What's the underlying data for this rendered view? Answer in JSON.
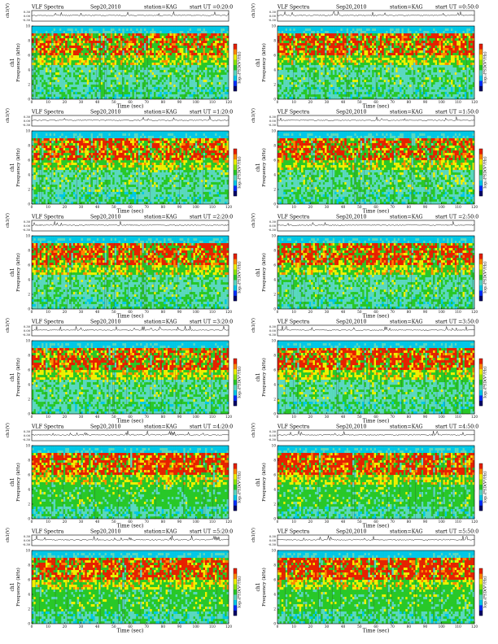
{
  "header": {
    "title": "VLF Spectra",
    "date": "Sep20,2010",
    "station": "station=KAG",
    "start_prefix": "start UT ="
  },
  "labels": {
    "ch1_axis": "ch1(V)",
    "ch1_ylabel": "ch1",
    "freq_ylabel": "Frequency (kHz)",
    "time_xlabel": "Time (sec)",
    "colorbar_label": "log₁₀PSD(V²/Hz)"
  },
  "colors": {
    "spectrogram": [
      "#00006a",
      "#0030ff",
      "#00c8e8",
      "#5ad8c0",
      "#28c828",
      "#8ce600",
      "#f0f000",
      "#ff8800",
      "#e82000"
    ]
  },
  "chart_data": [
    {
      "type": "heatmap",
      "start_ut": "0:20:0",
      "xlim": [
        0,
        120
      ],
      "ylim": [
        0,
        10
      ],
      "xticks": [
        0,
        10,
        20,
        30,
        40,
        50,
        60,
        70,
        80,
        90,
        100,
        110,
        120
      ],
      "yticks": [
        0,
        2,
        4,
        6,
        8,
        10
      ],
      "ch1_ylim": [
        -0.3,
        0.3
      ],
      "ch1_ticks": [
        "0.30",
        "0.00",
        "-0.30"
      ]
    },
    {
      "type": "heatmap",
      "start_ut": "0:50:0",
      "xlim": [
        0,
        120
      ],
      "ylim": [
        0,
        10
      ],
      "xticks": [
        0,
        10,
        20,
        30,
        40,
        50,
        60,
        70,
        80,
        90,
        100,
        110,
        120
      ],
      "yticks": [
        0,
        2,
        4,
        6,
        8,
        10
      ],
      "ch1_ylim": [
        -0.3,
        0.3
      ],
      "ch1_ticks": [
        "0.30",
        "0.00",
        "-0.30"
      ]
    },
    {
      "type": "heatmap",
      "start_ut": "1:20:0",
      "xlim": [
        0,
        120
      ],
      "ylim": [
        0,
        10
      ],
      "xticks": [
        0,
        10,
        20,
        30,
        40,
        50,
        60,
        70,
        80,
        90,
        100,
        110,
        120
      ],
      "yticks": [
        0,
        2,
        4,
        6,
        8,
        10
      ],
      "ch1_ylim": [
        -0.3,
        0.3
      ],
      "ch1_ticks": [
        "0.30",
        "0.00",
        "-0.30"
      ]
    },
    {
      "type": "heatmap",
      "start_ut": "1:50:0",
      "xlim": [
        0,
        120
      ],
      "ylim": [
        0,
        10
      ],
      "xticks": [
        0,
        10,
        20,
        30,
        40,
        50,
        60,
        70,
        80,
        90,
        100,
        110,
        120
      ],
      "yticks": [
        0,
        2,
        4,
        6,
        8,
        10
      ],
      "ch1_ylim": [
        -0.3,
        0.3
      ],
      "ch1_ticks": [
        "0.30",
        "0.00",
        "-0.30"
      ]
    },
    {
      "type": "heatmap",
      "start_ut": "2:20:0",
      "xlim": [
        0,
        120
      ],
      "ylim": [
        0,
        10
      ],
      "xticks": [
        0,
        10,
        20,
        30,
        40,
        50,
        60,
        70,
        80,
        90,
        100,
        110,
        120
      ],
      "yticks": [
        0,
        2,
        4,
        6,
        8,
        10
      ],
      "ch1_ylim": [
        -0.3,
        0.3
      ],
      "ch1_ticks": [
        "0.30",
        "0.00",
        "-0.30"
      ]
    },
    {
      "type": "heatmap",
      "start_ut": "2:50:0",
      "xlim": [
        0,
        120
      ],
      "ylim": [
        0,
        10
      ],
      "xticks": [
        0,
        10,
        20,
        30,
        40,
        50,
        60,
        70,
        80,
        90,
        100,
        110,
        120
      ],
      "yticks": [
        0,
        2,
        4,
        6,
        8,
        10
      ],
      "ch1_ylim": [
        -0.3,
        0.3
      ],
      "ch1_ticks": [
        "0.30",
        "0.00",
        "-0.30"
      ]
    },
    {
      "type": "heatmap",
      "start_ut": "3:20:0",
      "xlim": [
        0,
        120
      ],
      "ylim": [
        0,
        10
      ],
      "xticks": [
        0,
        10,
        20,
        30,
        40,
        50,
        60,
        70,
        80,
        90,
        100,
        110,
        120
      ],
      "yticks": [
        0,
        2,
        4,
        6,
        8,
        10
      ],
      "ch1_ylim": [
        -0.3,
        0.3
      ],
      "ch1_ticks": [
        "0.30",
        "0.00",
        "-0.30"
      ]
    },
    {
      "type": "heatmap",
      "start_ut": "3:50:0",
      "xlim": [
        0,
        120
      ],
      "ylim": [
        0,
        10
      ],
      "xticks": [
        0,
        10,
        20,
        30,
        40,
        50,
        60,
        70,
        80,
        90,
        100,
        110,
        120
      ],
      "yticks": [
        0,
        2,
        4,
        6,
        8,
        10
      ],
      "ch1_ylim": [
        -0.3,
        0.3
      ],
      "ch1_ticks": [
        "0.30",
        "0.00",
        "-0.30"
      ]
    },
    {
      "type": "heatmap",
      "start_ut": "4:20:0",
      "xlim": [
        0,
        120
      ],
      "ylim": [
        0,
        10
      ],
      "xticks": [
        0,
        10,
        20,
        30,
        40,
        50,
        60,
        70,
        80,
        90,
        100,
        110,
        120
      ],
      "yticks": [
        0,
        2,
        4,
        6,
        8,
        10
      ],
      "ch1_ylim": [
        -0.3,
        0.3
      ],
      "ch1_ticks": [
        "0.30",
        "0.00",
        "-0.30"
      ]
    },
    {
      "type": "heatmap",
      "start_ut": "4:50:0",
      "xlim": [
        0,
        120
      ],
      "ylim": [
        0,
        10
      ],
      "xticks": [
        0,
        10,
        20,
        30,
        40,
        50,
        60,
        70,
        80,
        90,
        100,
        110,
        120
      ],
      "yticks": [
        0,
        2,
        4,
        6,
        8,
        10
      ],
      "ch1_ylim": [
        -0.3,
        0.3
      ],
      "ch1_ticks": [
        "0.30",
        "0.00",
        "-0.30"
      ]
    },
    {
      "type": "heatmap",
      "start_ut": "5:20:0",
      "xlim": [
        0,
        120
      ],
      "ylim": [
        0,
        10
      ],
      "xticks": [
        0,
        10,
        20,
        30,
        40,
        50,
        60,
        70,
        80,
        90,
        100,
        110,
        120
      ],
      "yticks": [
        0,
        2,
        4,
        6,
        8,
        10
      ],
      "ch1_ylim": [
        -0.3,
        0.3
      ],
      "ch1_ticks": [
        "0.30",
        "0.00",
        "-0.30"
      ]
    },
    {
      "type": "heatmap",
      "start_ut": "5:50:0",
      "xlim": [
        0,
        120
      ],
      "ylim": [
        0,
        10
      ],
      "xticks": [
        0,
        10,
        20,
        30,
        40,
        50,
        60,
        70,
        80,
        90,
        100,
        110,
        120
      ],
      "yticks": [
        0,
        2,
        4,
        6,
        8,
        10
      ],
      "ch1_ylim": [
        -0.3,
        0.3
      ],
      "ch1_ticks": [
        "0.30",
        "0.00",
        "-0.30"
      ]
    }
  ]
}
